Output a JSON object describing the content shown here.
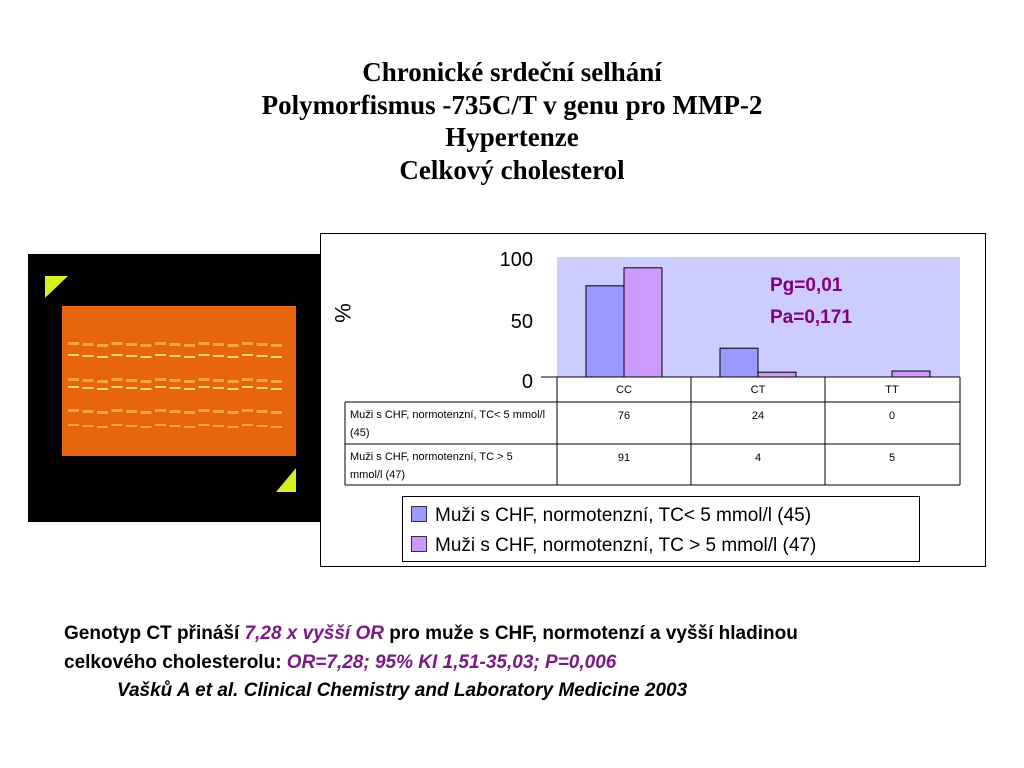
{
  "titles": {
    "line1": "Chronické srdeční selhání",
    "line2": "Polymorfismus -735C/T v genu pro MMP-2",
    "line3": "Hypertenze",
    "line4": "Celkový cholesterol"
  },
  "chart_data": {
    "type": "bar",
    "categories": [
      "CC",
      "CT",
      "TT"
    ],
    "series": [
      {
        "name": "Muži s CHF, normotenzní, TC< 5 mmol/l (45)",
        "table_label": "Muži s CHF, normotenzní, TC< 5 mmol/l (45)",
        "values": [
          76,
          24,
          0
        ],
        "color": "#9999ff"
      },
      {
        "name": "Muži s CHF, normotenzní, TC > 5 mmol/l (47)",
        "table_label": "Muži s CHF, normotenzní, TC > 5 mmol/l (47)",
        "values": [
          91,
          4,
          5
        ],
        "color": "#cc99ff"
      }
    ],
    "ylabel": "%",
    "yticks": [
      "100",
      "50",
      "0"
    ],
    "ylim": [
      0,
      100
    ],
    "annotation_pg": "Pg=0,01",
    "annotation_pa": "Pa=0,171",
    "plot_bg": "#ccccff",
    "annotation_color": "#800080",
    "legend_position": "bottom"
  },
  "footer": {
    "line1_a": "Genotyp CT přináší ",
    "line1_b": "7,28 x vyšší  OR",
    "line1_c": " pro muže s CHF, normotenzí  a vyšší hladinou",
    "line2_a": "celkového cholesterolu",
    "line2_b": ":  ",
    "line2_c": "OR=7,28;  95% KI 1,51-35,03;  P=0,006",
    "reference": "Vašků A et al. Clinical Chemistry and Laboratory Medicine 2003"
  },
  "gel_image": {
    "icon": "electrophoresis-gel-photo",
    "background": "#000000",
    "gel_color": "#e8650f"
  }
}
